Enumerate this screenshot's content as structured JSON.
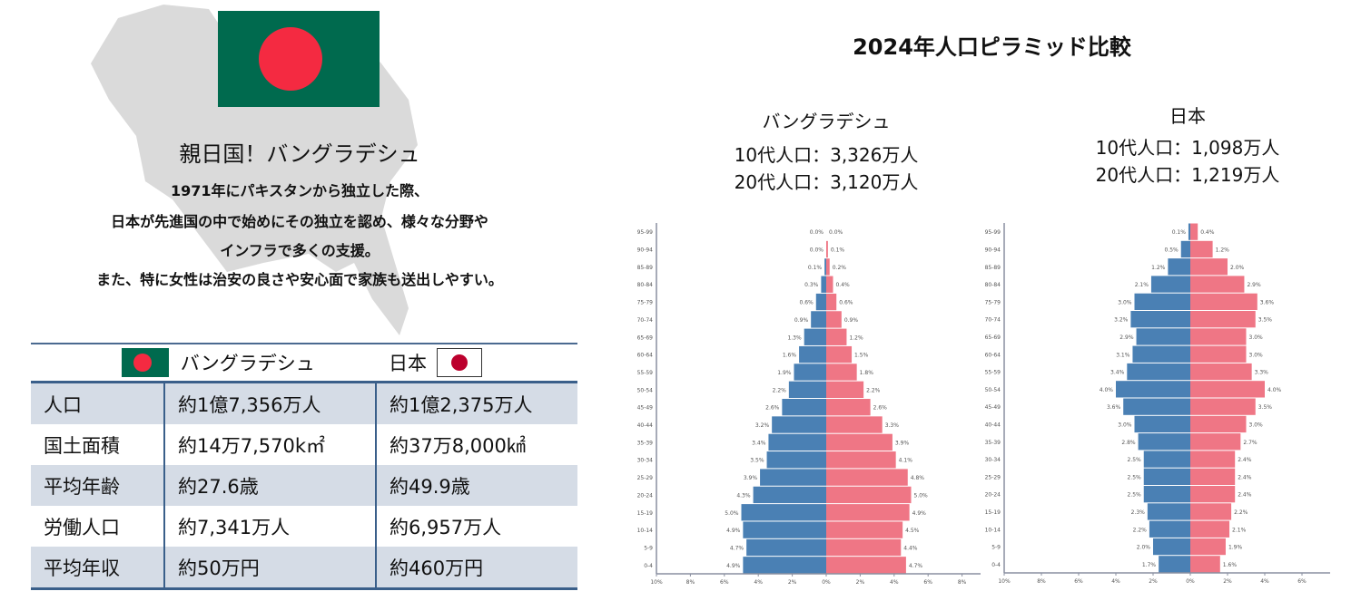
{
  "intro": {
    "title": "親日国！バングラデシュ",
    "lines": [
      "1971年にパキスタンから独立した際、",
      "日本が先進国の中で始めにその独立を認め、様々な分野や",
      "インフラで多くの支援。",
      "また、特に女性は治安の良さや安心面で家族も送出しやすい。"
    ]
  },
  "table": {
    "header": {
      "bangladesh": "バングラデシュ",
      "japan": "日本"
    },
    "rows": [
      {
        "label": "人口",
        "bangladesh": "約1億7,356万人",
        "japan": "約1億2,375万人"
      },
      {
        "label": "国土面積",
        "bangladesh": "約14万7,570k㎡",
        "japan": "約37万8,000㎢"
      },
      {
        "label": "平均年齢",
        "bangladesh": "約27.6歳",
        "japan": "約49.9歳"
      },
      {
        "label": "労働人口",
        "bangladesh": "約7,341万人",
        "japan": "約6,957万人"
      },
      {
        "label": "平均年収",
        "bangladesh": "約50万円",
        "japan": "約460万円"
      }
    ]
  },
  "colors": {
    "male": "#4a80b4",
    "female": "#ef7685",
    "bd_green": "#006a4e",
    "bd_red": "#f42a41",
    "jp_red": "#bc002d",
    "table_stripe": "#d5dce6"
  },
  "chart_title": "2024年人口ピラミッド比較",
  "chart_data": [
    {
      "type": "bar",
      "orientation": "horizontal-pyramid",
      "country": "バングラデシュ",
      "stats": [
        "10代人口：3,326万人",
        "20代人口：3,120万人"
      ],
      "age_groups": [
        "95-99",
        "90-94",
        "85-89",
        "80-84",
        "75-79",
        "70-74",
        "65-69",
        "60-64",
        "55-59",
        "50-54",
        "45-49",
        "40-44",
        "35-39",
        "30-34",
        "25-29",
        "20-24",
        "15-19",
        "10-14",
        "5-9",
        "0-4"
      ],
      "male": [
        0.0,
        0.0,
        0.1,
        0.3,
        0.6,
        0.9,
        1.3,
        1.6,
        1.9,
        2.2,
        2.6,
        3.2,
        3.4,
        3.5,
        3.9,
        4.3,
        5.0,
        4.9,
        4.7,
        4.9
      ],
      "female": [
        0.0,
        0.1,
        0.2,
        0.4,
        0.6,
        0.9,
        1.2,
        1.5,
        1.8,
        2.2,
        2.6,
        3.3,
        3.9,
        4.1,
        4.8,
        5.0,
        4.9,
        4.5,
        4.4,
        4.7
      ],
      "x_ticks": [
        "10%",
        "8%",
        "6%",
        "4%",
        "2%",
        "0%",
        "2%",
        "4%",
        "6%",
        "8%"
      ],
      "xlim": [
        -10,
        8
      ],
      "unit": "%"
    },
    {
      "type": "bar",
      "orientation": "horizontal-pyramid",
      "country": "日本",
      "stats": [
        "10代人口：1,098万人",
        "20代人口：1,219万人"
      ],
      "age_groups": [
        "95-99",
        "90-94",
        "85-89",
        "80-84",
        "75-79",
        "70-74",
        "65-69",
        "60-64",
        "55-59",
        "50-54",
        "45-49",
        "40-44",
        "35-39",
        "30-34",
        "25-29",
        "20-24",
        "15-19",
        "10-14",
        "5-9",
        "0-4"
      ],
      "male": [
        0.1,
        0.5,
        1.2,
        2.1,
        3.0,
        3.2,
        2.9,
        3.1,
        3.4,
        4.0,
        3.6,
        3.0,
        2.8,
        2.5,
        2.5,
        2.5,
        2.3,
        2.2,
        2.0,
        1.7
      ],
      "female": [
        0.4,
        1.2,
        2.0,
        2.9,
        3.6,
        3.5,
        3.0,
        3.0,
        3.3,
        4.0,
        3.5,
        3.0,
        2.7,
        2.4,
        2.4,
        2.4,
        2.2,
        2.1,
        1.9,
        1.6
      ],
      "x_ticks": [
        "10%",
        "8%",
        "6%",
        "4%",
        "2%",
        "0%",
        "2%",
        "4%",
        "6%"
      ],
      "xlim": [
        -10,
        7.4
      ],
      "unit": "%"
    }
  ]
}
